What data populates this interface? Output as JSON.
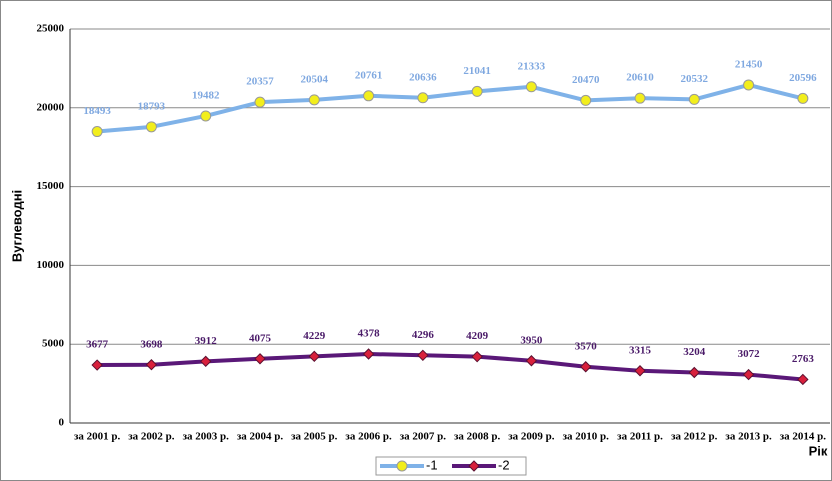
{
  "chart_data": {
    "type": "line",
    "y_label": "Вуглеводні",
    "x_label": "Рік",
    "categories": [
      "за 2001 р.",
      "за 2002 р.",
      "за 2003 р.",
      "за 2004 р.",
      "за 2005 р.",
      "за 2006 р.",
      "за 2007 р.",
      "за 2008 р.",
      "за 2009 р.",
      "за 2010 р.",
      "за 2011 р.",
      "за 2012 р.",
      "за 2013 р.",
      "за 2014 р."
    ],
    "series": [
      {
        "name": "-1",
        "color": "#7fb2e8",
        "marker": "circle",
        "marker_color": "#f2ee1c",
        "label_color": "#7fa8e0",
        "values": [
          18493,
          18793,
          19482,
          20357,
          20504,
          20761,
          20636,
          21041,
          21333,
          20470,
          20610,
          20532,
          21450,
          20596
        ]
      },
      {
        "name": "-2",
        "color": "#5a1878",
        "marker": "diamond",
        "marker_color": "#d8203c",
        "label_color": "#4a1a68",
        "values": [
          3677,
          3698,
          3912,
          4075,
          4229,
          4378,
          4296,
          4209,
          3950,
          3570,
          3315,
          3204,
          3072,
          2763
        ]
      }
    ],
    "ylim": [
      0,
      25000
    ],
    "yticks": [
      0,
      5000,
      10000,
      15000,
      20000,
      25000
    ],
    "grid": true,
    "legend": "bottom"
  }
}
